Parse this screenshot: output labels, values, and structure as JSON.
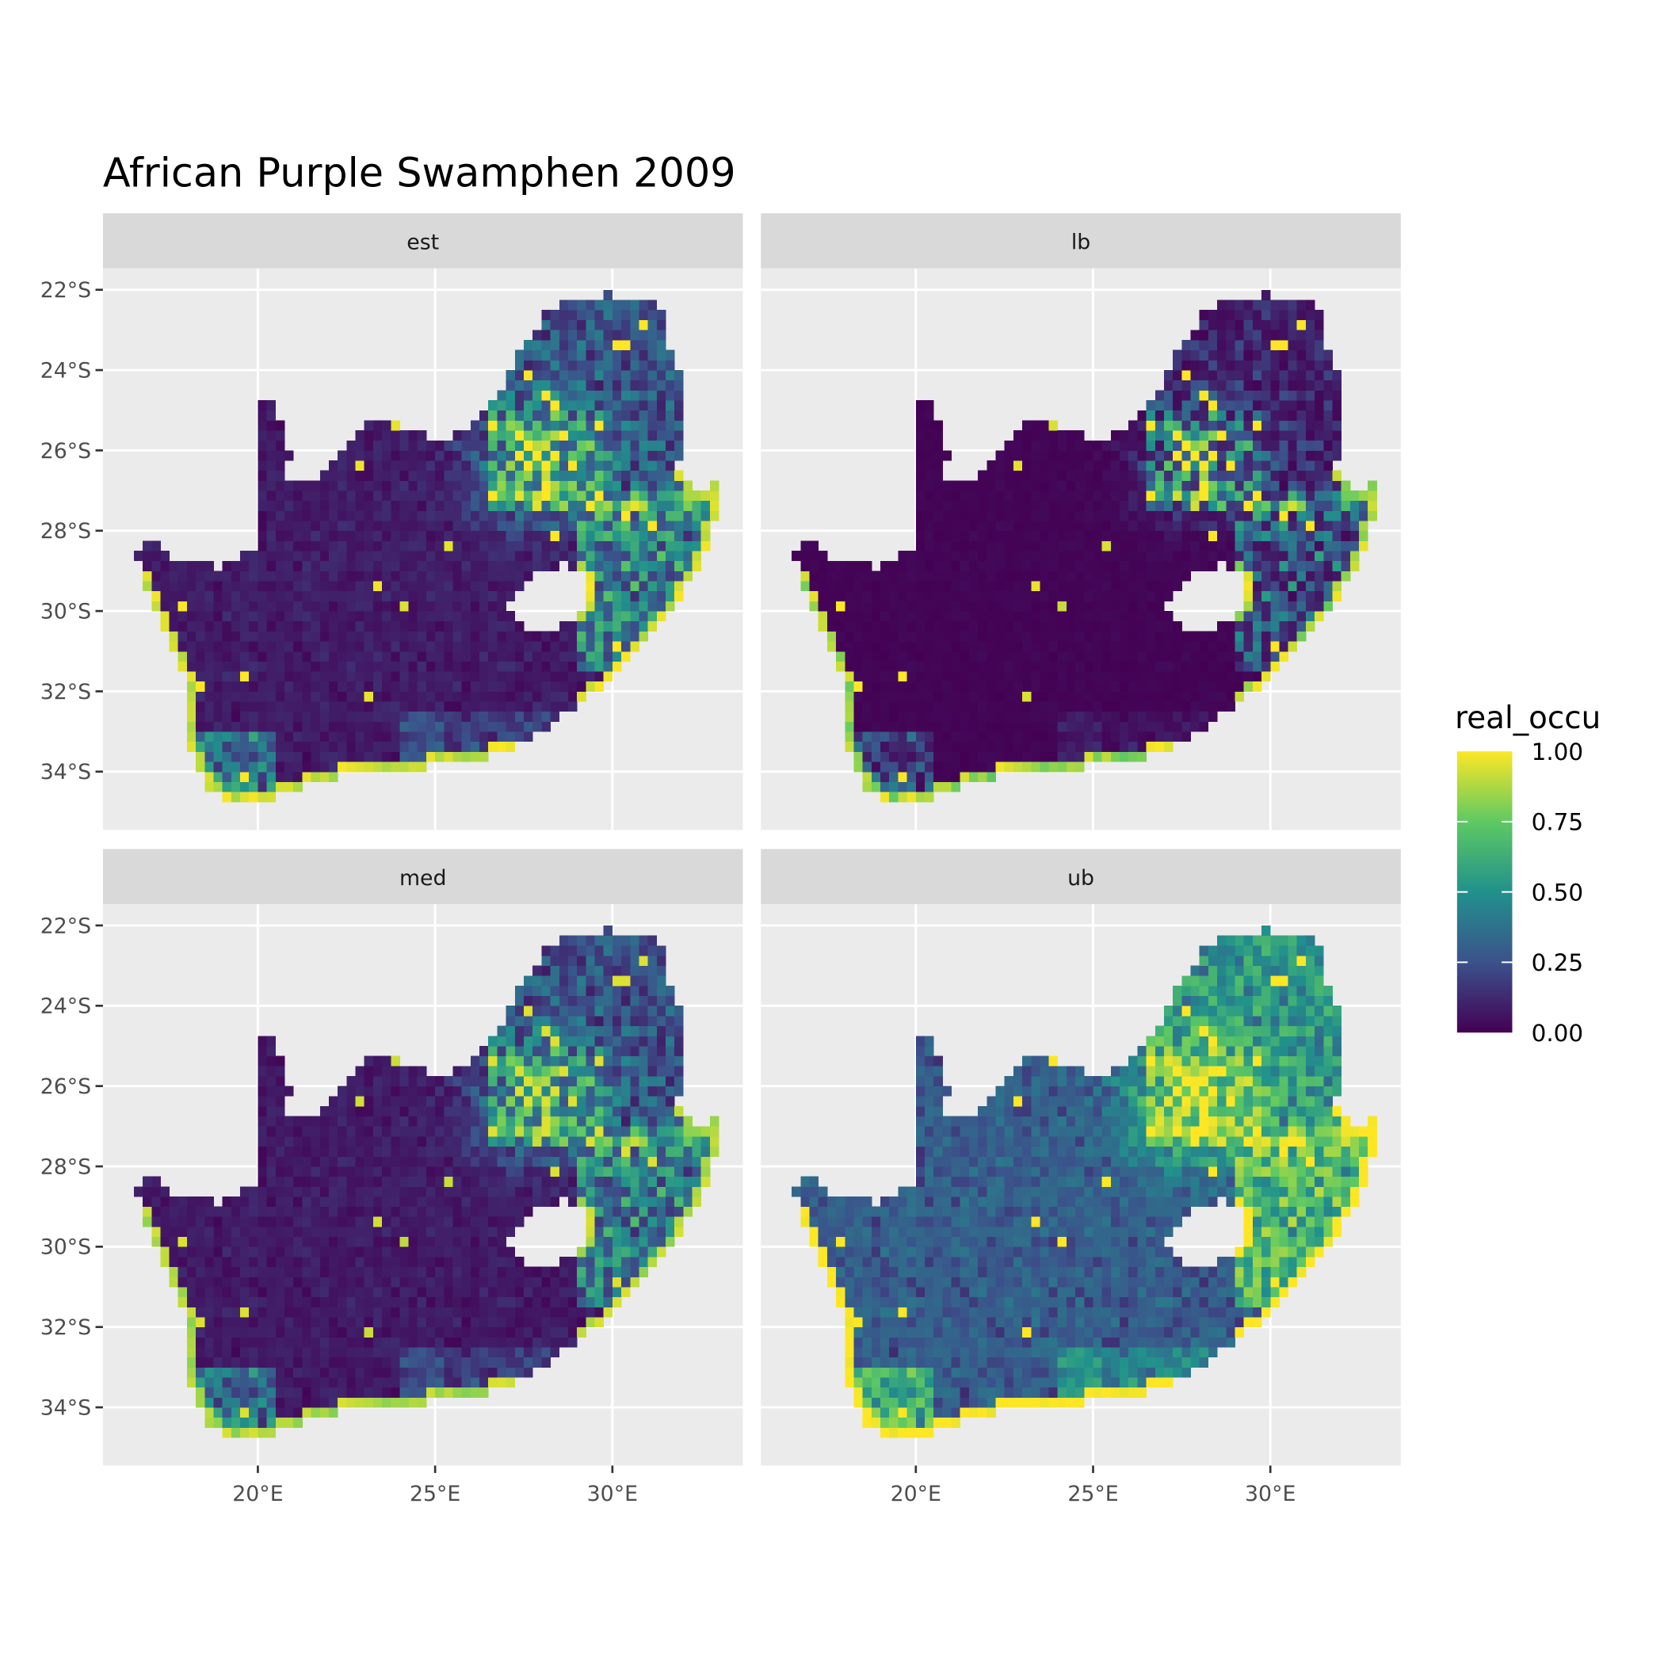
{
  "title": "African Purple Swamphen 2009",
  "facets": [
    {
      "label": "est"
    },
    {
      "label": "lb"
    },
    {
      "label": "med"
    },
    {
      "label": "ub"
    }
  ],
  "axes": {
    "y_ticks": [
      "22°S",
      "24°S",
      "26°S",
      "28°S",
      "30°S",
      "32°S",
      "34°S"
    ],
    "y_values": [
      -22,
      -24,
      -26,
      -28,
      -30,
      -32,
      -34
    ],
    "x_ticks": [
      "20°E",
      "25°E",
      "30°E"
    ],
    "x_values": [
      20,
      25,
      30
    ]
  },
  "legend": {
    "title": "real_occu",
    "labels": [
      "1.00",
      "0.75",
      "0.50",
      "0.25",
      "0.00"
    ],
    "values": [
      1,
      0.75,
      0.5,
      0.25,
      0
    ]
  },
  "colors": {
    "panel_bg": "#ebebeb",
    "strip_bg": "#d9d9d9",
    "grid": "#ffffff",
    "colorscale": [
      "#440154",
      "#3b528b",
      "#21918c",
      "#5ec962",
      "#fde725"
    ]
  },
  "chart_data": {
    "type": "heatmap",
    "title": "African Purple Swamphen 2009",
    "facet_var_levels": [
      "est",
      "lb",
      "med",
      "ub"
    ],
    "fill_var": "real_occu",
    "fill_range": [
      0,
      1
    ],
    "colorscale": "viridis",
    "xlim": [
      15.6,
      33.7
    ],
    "ylim": [
      -35.45,
      -21.47
    ],
    "grid": true,
    "legend_position": "right",
    "region": "South Africa (Lesotho excluded)"
  }
}
